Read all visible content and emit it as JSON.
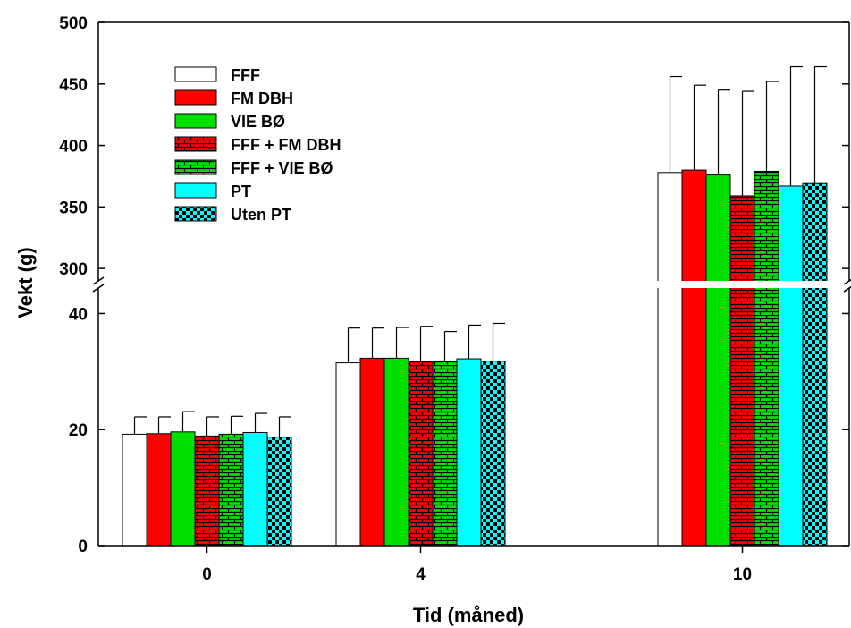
{
  "chart_data": {
    "type": "bar",
    "title": "",
    "xlabel": "Tid (måned)",
    "ylabel": "Vekt (g)",
    "broken_axis": true,
    "lower_ylim": [
      0,
      45
    ],
    "upper_ylim": [
      287,
      500
    ],
    "lower_yticks": [
      "0",
      "20",
      "40"
    ],
    "upper_yticks": [
      "300",
      "350",
      "400",
      "450",
      "500"
    ],
    "categories": [
      "0",
      "4",
      "10"
    ],
    "legend_position": "top-left",
    "grid": false,
    "series": [
      {
        "name": "FFF",
        "color": "#ffffff",
        "pattern": "none",
        "values": [
          19.2,
          31.5,
          378
        ],
        "errors": [
          3.0,
          6.0,
          78
        ]
      },
      {
        "name": "FM DBH",
        "color": "#ff0000",
        "pattern": "none",
        "values": [
          19.3,
          32.3,
          380
        ],
        "errors": [
          2.9,
          5.2,
          69
        ]
      },
      {
        "name": "VIE BØ",
        "color": "#00e000",
        "pattern": "none",
        "values": [
          19.6,
          32.3,
          376
        ],
        "errors": [
          3.5,
          5.3,
          69
        ]
      },
      {
        "name": "FFF + FM DBH",
        "color": "#ff0000",
        "pattern": "brick",
        "values": [
          18.9,
          31.8,
          359
        ],
        "errors": [
          3.3,
          6.0,
          85
        ]
      },
      {
        "name": "FFF + VIE BØ",
        "color": "#00e000",
        "pattern": "brick",
        "values": [
          19.2,
          31.7,
          379
        ],
        "errors": [
          3.1,
          5.2,
          73
        ]
      },
      {
        "name": "PT",
        "color": "#00ffff",
        "pattern": "none",
        "values": [
          19.5,
          32.2,
          367
        ],
        "errors": [
          3.3,
          5.8,
          97
        ]
      },
      {
        "name": "Uten PT",
        "color": "#00ffff",
        "pattern": "checker",
        "values": [
          18.7,
          31.8,
          369
        ],
        "errors": [
          3.5,
          6.5,
          95
        ]
      }
    ]
  }
}
